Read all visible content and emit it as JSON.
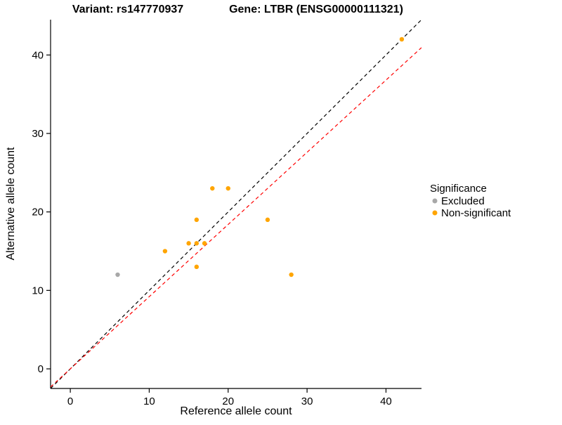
{
  "chart_data": {
    "type": "scatter",
    "title_left": "Variant: rs147770937",
    "title_right": "Gene: LTBR (ENSG00000111321)",
    "xlabel": "Reference allele count",
    "ylabel": "Alternative allele count",
    "xlim": [
      -2.5,
      44.5
    ],
    "ylim": [
      -2.5,
      44.5
    ],
    "xticks": [
      0,
      10,
      20,
      30,
      40
    ],
    "yticks": [
      0,
      10,
      20,
      30,
      40
    ],
    "grid": false,
    "legend_position": "right",
    "series": [
      {
        "name": "Excluded",
        "color": "#A8A8A8",
        "points": [
          [
            6,
            12
          ]
        ]
      },
      {
        "name": "Non-significant",
        "color": "#FFA500",
        "points": [
          [
            12,
            15
          ],
          [
            15,
            16
          ],
          [
            16,
            13
          ],
          [
            16,
            16
          ],
          [
            16,
            19
          ],
          [
            17,
            16
          ],
          [
            18,
            23
          ],
          [
            20,
            23
          ],
          [
            25,
            19
          ],
          [
            28,
            12
          ],
          [
            42,
            42
          ]
        ]
      }
    ],
    "lines": [
      {
        "name": "identity-line",
        "color": "#000000",
        "dash": "5,4",
        "slope": 1,
        "intercept": 0
      },
      {
        "name": "fit-line",
        "color": "#FF0000",
        "dash": "5,4",
        "slope": 0.92,
        "intercept": 0
      }
    ],
    "legend": {
      "title": "Significance",
      "items": [
        {
          "label": "Excluded",
          "color": "#A8A8A8"
        },
        {
          "label": "Non-significant",
          "color": "#FFA500"
        }
      ]
    }
  }
}
